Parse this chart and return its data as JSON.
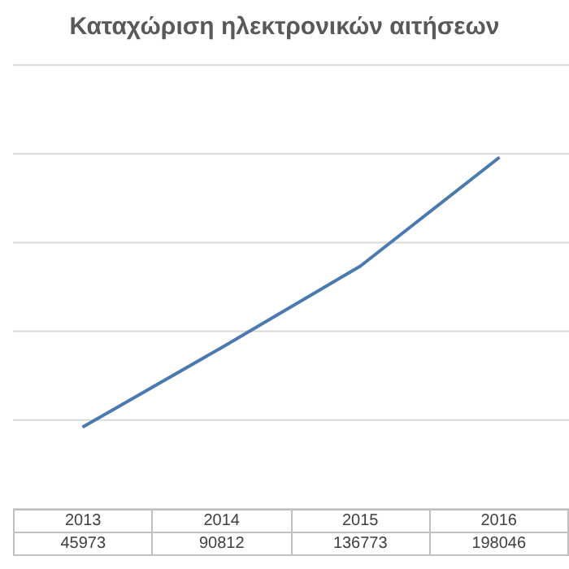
{
  "chart_data": {
    "type": "line",
    "title": "Καταχώριση ηλεκτρονικών αιτήσεων",
    "categories": [
      "2013",
      "2014",
      "2015",
      "2016"
    ],
    "series": [
      {
        "color": "#4a7ab0",
        "values": [
          45973,
          90812,
          136773,
          198046
        ]
      }
    ],
    "ylim": [
      0,
      250000
    ],
    "yticks": [
      {
        "value": 0,
        "label": null
      },
      {
        "value": 50000,
        "label": null
      },
      {
        "value": 100000,
        "label": null
      },
      {
        "value": 150000,
        "label": null
      },
      {
        "value": 200000,
        "label": null
      },
      {
        "value": 250000,
        "label": null
      }
    ],
    "grid": "y",
    "tick_labels": false,
    "marker": "none",
    "line_style": "solid",
    "data_labels": true
  }
}
